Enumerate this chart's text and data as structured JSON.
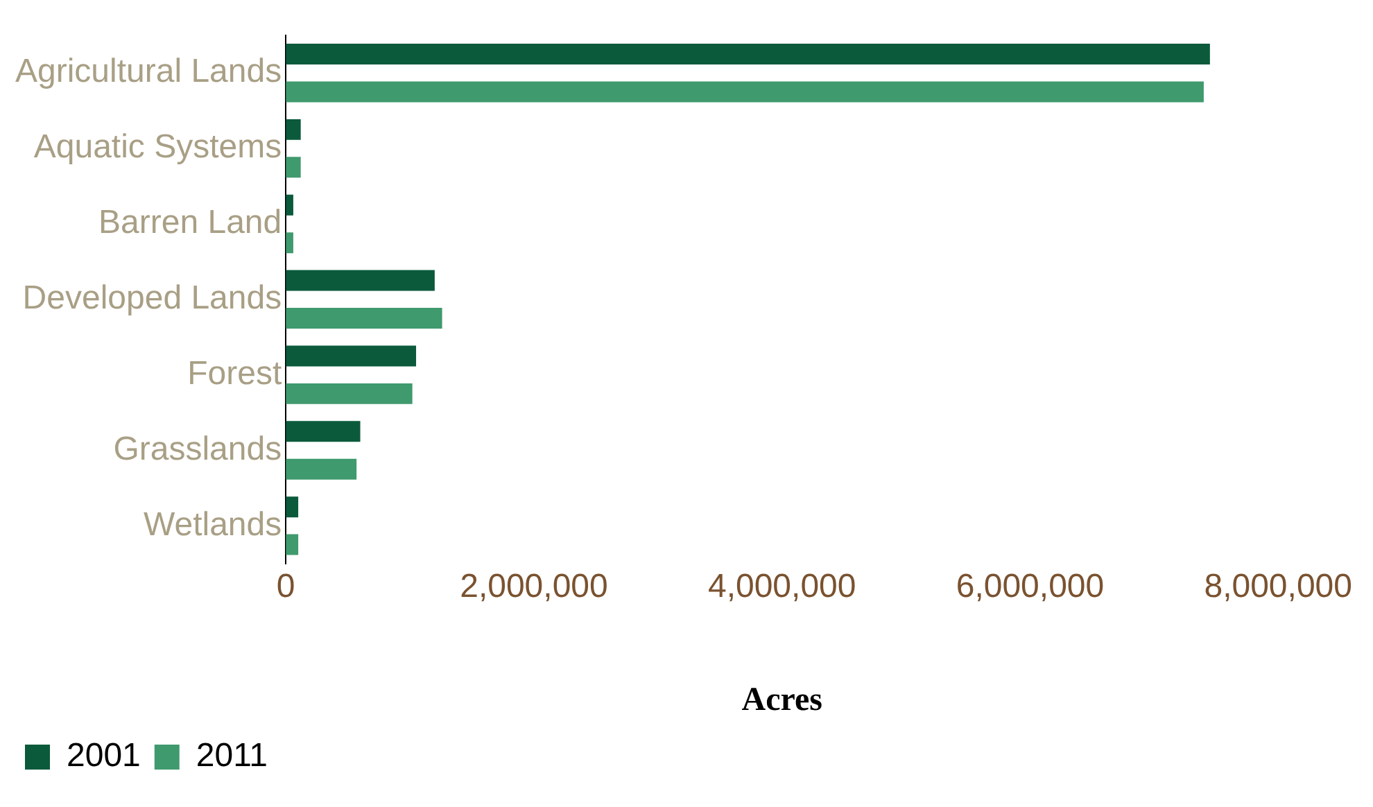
{
  "chart_data": {
    "type": "bar",
    "orientation": "horizontal",
    "xlabel": "Acres",
    "categories": [
      "Agricultural Lands",
      "Aquatic Systems",
      "Barren Land",
      "Developed Lands",
      "Forest",
      "Grasslands",
      "Wetlands"
    ],
    "series": [
      {
        "name": "2001",
        "color": "#0b5a3c",
        "values": [
          7450000,
          120000,
          60000,
          1200000,
          1050000,
          600000,
          100000
        ]
      },
      {
        "name": "2011",
        "color": "#3f9a6e",
        "values": [
          7400000,
          120000,
          60000,
          1260000,
          1020000,
          570000,
          100000
        ]
      }
    ],
    "xlim": [
      0,
      8000000
    ],
    "xticks": [
      {
        "value": 0,
        "label": "0"
      },
      {
        "value": 2000000,
        "label": "2,000,000"
      },
      {
        "value": 4000000,
        "label": "4,000,000"
      },
      {
        "value": 6000000,
        "label": "6,000,000"
      },
      {
        "value": 8000000,
        "label": "8,000,000"
      }
    ],
    "grid": false,
    "legend": "bottom left"
  }
}
